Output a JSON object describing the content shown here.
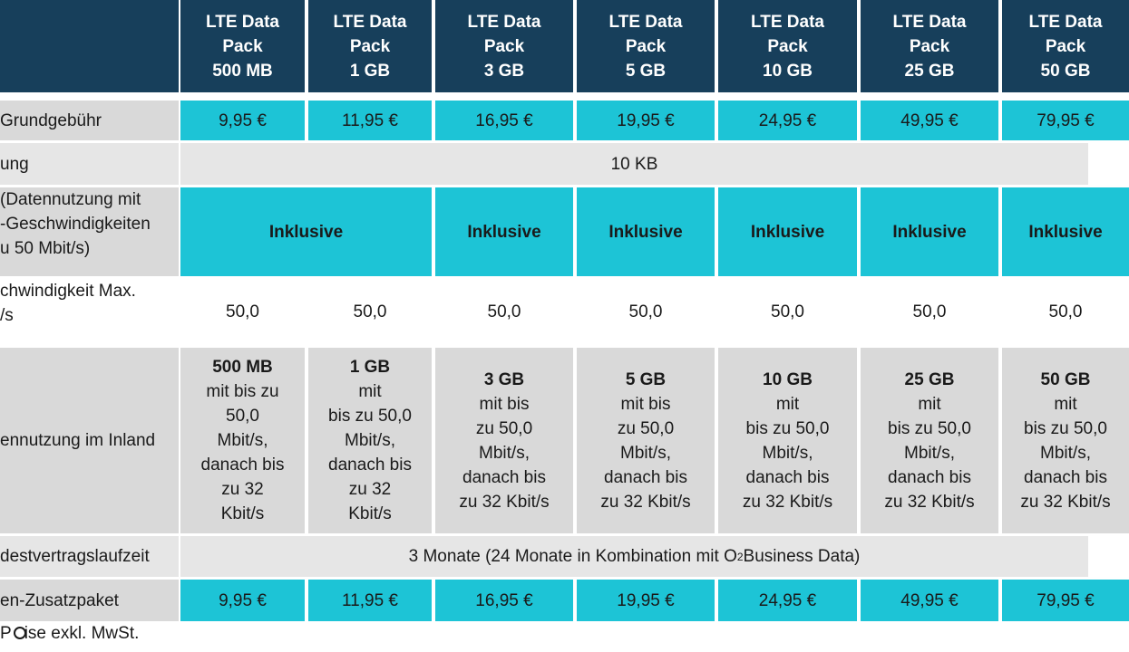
{
  "headers": [
    {
      "l1": "LTE Data",
      "l2": "Pack",
      "l3": "500 MB"
    },
    {
      "l1": "LTE Data",
      "l2": "Pack",
      "l3": "1 GB"
    },
    {
      "l1": "LTE Data",
      "l2": "Pack",
      "l3": "3 GB"
    },
    {
      "l1": "LTE Data",
      "l2": "Pack",
      "l3": "5 GB"
    },
    {
      "l1": "LTE Data",
      "l2": "Pack",
      "l3": "10 GB"
    },
    {
      "l1": "LTE Data",
      "l2": "Pack",
      "l3": "25 GB"
    },
    {
      "l1": "LTE Data",
      "l2": "Pack",
      "l3": "50 GB"
    }
  ],
  "rows": {
    "fee": {
      "label": "Grundgebühr",
      "values": [
        "9,95 €",
        "11,95 €",
        "16,95 €",
        "19,95 €",
        "24,95 €",
        "49,95 €",
        "79,95 €"
      ]
    },
    "billing": {
      "label": "ung",
      "value": "10 KB"
    },
    "lte": {
      "label_lines": [
        "(Datennutzung mit",
        "-Geschwindigkeiten",
        "u 50 Mbit/s)"
      ],
      "value": "Inklusive"
    },
    "speed": {
      "label_lines": [
        "chwindigkeit Max.",
        "/s"
      ],
      "values": [
        "50,0",
        "50,0",
        "50,0",
        "50,0",
        "50,0",
        "50,0",
        "50,0"
      ]
    },
    "usage": {
      "label": "ennutzung im Inland",
      "cells": [
        {
          "lines": [
            {
              "b": "500 MB",
              "t": ""
            },
            {
              "b": "",
              "t": "mit bis zu"
            },
            {
              "b": "",
              "t": "50,0"
            },
            {
              "b": "",
              "t": "Mbit/s,"
            },
            {
              "b": "",
              "t": "danach bis"
            },
            {
              "b": "",
              "t": "zu  32"
            },
            {
              "b": "",
              "t": "Kbit/s"
            }
          ]
        },
        {
          "lines": [
            {
              "b": "1 GB",
              "t": " mit"
            },
            {
              "b": "",
              "t": "bis zu 50,0"
            },
            {
              "b": "",
              "t": "Mbit/s,"
            },
            {
              "b": "",
              "t": "danach bis"
            },
            {
              "b": "",
              "t": "zu  32"
            },
            {
              "b": "",
              "t": "Kbit/s"
            }
          ]
        },
        {
          "lines": [
            {
              "b": "3 GB",
              "t": " mit bis"
            },
            {
              "b": "",
              "t": "zu 50,0"
            },
            {
              "b": "",
              "t": "Mbit/s,"
            },
            {
              "b": "",
              "t": "danach bis"
            },
            {
              "b": "",
              "t": "zu  32 Kbit/s"
            }
          ]
        },
        {
          "lines": [
            {
              "b": "5 GB",
              "t": " mit bis"
            },
            {
              "b": "",
              "t": "zu 50,0"
            },
            {
              "b": "",
              "t": "Mbit/s,"
            },
            {
              "b": "",
              "t": "danach bis"
            },
            {
              "b": "",
              "t": "zu  32 Kbit/s"
            }
          ]
        },
        {
          "lines": [
            {
              "b": "10 GB",
              "t": " mit"
            },
            {
              "b": "",
              "t": "bis zu 50,0"
            },
            {
              "b": "",
              "t": "Mbit/s,"
            },
            {
              "b": "",
              "t": "danach bis"
            },
            {
              "b": "",
              "t": "zu  32 Kbit/s"
            }
          ]
        },
        {
          "lines": [
            {
              "b": "25 GB",
              "t": " mit"
            },
            {
              "b": "",
              "t": "bis zu 50,0"
            },
            {
              "b": "",
              "t": "Mbit/s,"
            },
            {
              "b": "",
              "t": "danach bis"
            },
            {
              "b": "",
              "t": "zu  32 Kbit/s"
            }
          ]
        },
        {
          "lines": [
            {
              "b": "50 GB",
              "t": " mit"
            },
            {
              "b": "",
              "t": "bis zu 50,0"
            },
            {
              "b": "",
              "t": "Mbit/s,"
            },
            {
              "b": "",
              "t": "danach bis"
            },
            {
              "b": "",
              "t": "zu  32 Kbit/s"
            }
          ]
        }
      ]
    },
    "term": {
      "label": "destvertragslaufzeit",
      "value_pre": "3 Monate (24 Monate in Kombination mit O",
      "value_sub": "2",
      "value_post": " Business Data)"
    },
    "addon": {
      "label": "en-Zusatzpaket",
      "values": [
        "9,95 €",
        "11,95 €",
        "16,95 €",
        "19,95 €",
        "24,95 €",
        "49,95 €",
        "79,95 €"
      ]
    }
  },
  "footnote": {
    "pre": "P",
    "post": "ise exkl. MwSt."
  },
  "colors": {
    "header": "#173f5b",
    "cyan": "#1dc4d6",
    "grey": "#d9d9d9",
    "light_grey": "#e6e6e6"
  }
}
